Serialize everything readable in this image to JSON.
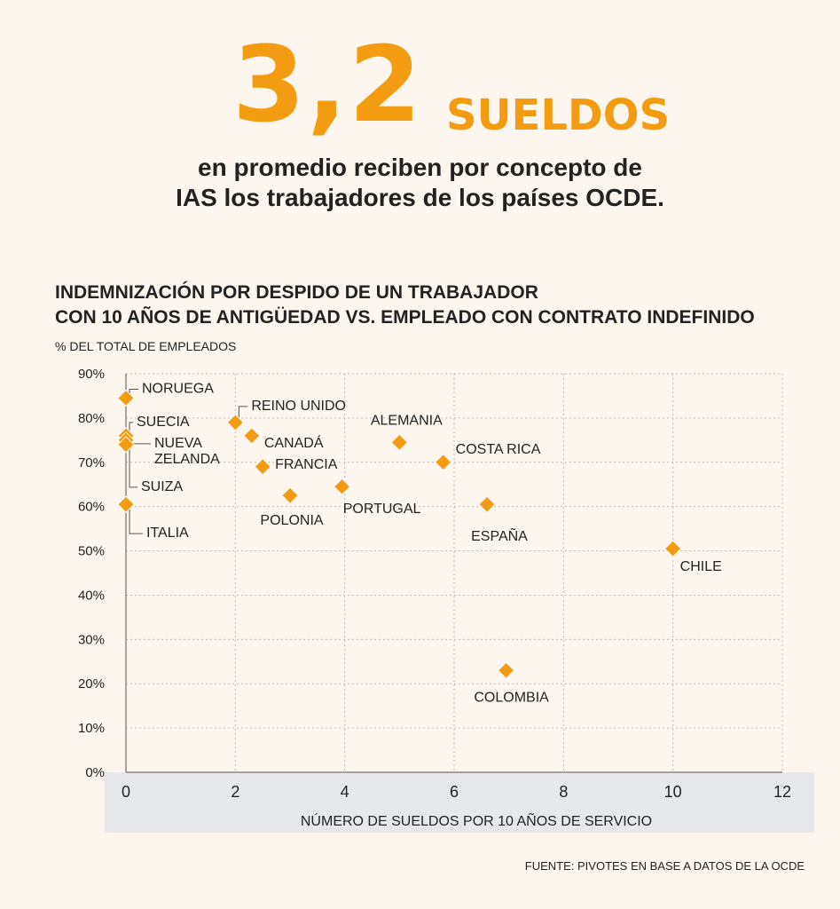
{
  "headline": {
    "number": "3,2",
    "unit": "SUELDOS",
    "line1": "en promedio reciben por concepto de",
    "line2": "IAS los trabajadores de los países OCDE."
  },
  "chart_title": {
    "line1": "INDEMNIZACIÓN POR DESPIDO DE UN TRABAJADOR",
    "line2": "CON 10 AÑOS DE ANTIGÜEDAD VS. EMPLEADO CON CONTRATO INDEFINIDO"
  },
  "source": "FUENTE: PIVOTES EN BASE A DATOS DE LA OCDE",
  "colors": {
    "accent": "#f39c12",
    "background": "#fdf6ef",
    "axis_band": "#e6e8ec",
    "grid": "#bbbbbb"
  },
  "chart_data": {
    "type": "scatter",
    "ylabel": "% DEL TOTAL DE EMPLEADOS",
    "xlabel": "NÚMERO DE SUELDOS POR 10 AÑOS DE SERVICIO",
    "xlim": [
      0,
      12
    ],
    "ylim": [
      0,
      90
    ],
    "xticks": [
      "0",
      "2",
      "4",
      "6",
      "8",
      "10",
      "12"
    ],
    "yticks": [
      "0%",
      "10%",
      "20%",
      "30%",
      "40%",
      "50%",
      "60%",
      "70%",
      "80%",
      "90%"
    ],
    "grid": true,
    "points": [
      {
        "label": "NORUEGA",
        "x": 0,
        "y": 84.5
      },
      {
        "label": "SUECIA",
        "x": 0,
        "y": 76
      },
      {
        "label": "NUEVA ZELANDA",
        "x": 0,
        "y": 75
      },
      {
        "label": "SUIZA",
        "x": 0,
        "y": 74
      },
      {
        "label": "ITALIA",
        "x": 0,
        "y": 60.5
      },
      {
        "label": "REINO UNIDO",
        "x": 2,
        "y": 79
      },
      {
        "label": "CANADÁ",
        "x": 2.3,
        "y": 76
      },
      {
        "label": "FRANCIA",
        "x": 2.5,
        "y": 69
      },
      {
        "label": "POLONIA",
        "x": 3,
        "y": 62.5
      },
      {
        "label": "PORTUGAL",
        "x": 3.95,
        "y": 64.5
      },
      {
        "label": "ALEMANIA",
        "x": 5,
        "y": 74.5
      },
      {
        "label": "COSTA RICA",
        "x": 5.8,
        "y": 70
      },
      {
        "label": "ESPAÑA",
        "x": 6.6,
        "y": 60.5
      },
      {
        "label": "CHILE",
        "x": 10,
        "y": 50.5
      },
      {
        "label": "COLOMBIA",
        "x": 6.95,
        "y": 23
      }
    ]
  }
}
